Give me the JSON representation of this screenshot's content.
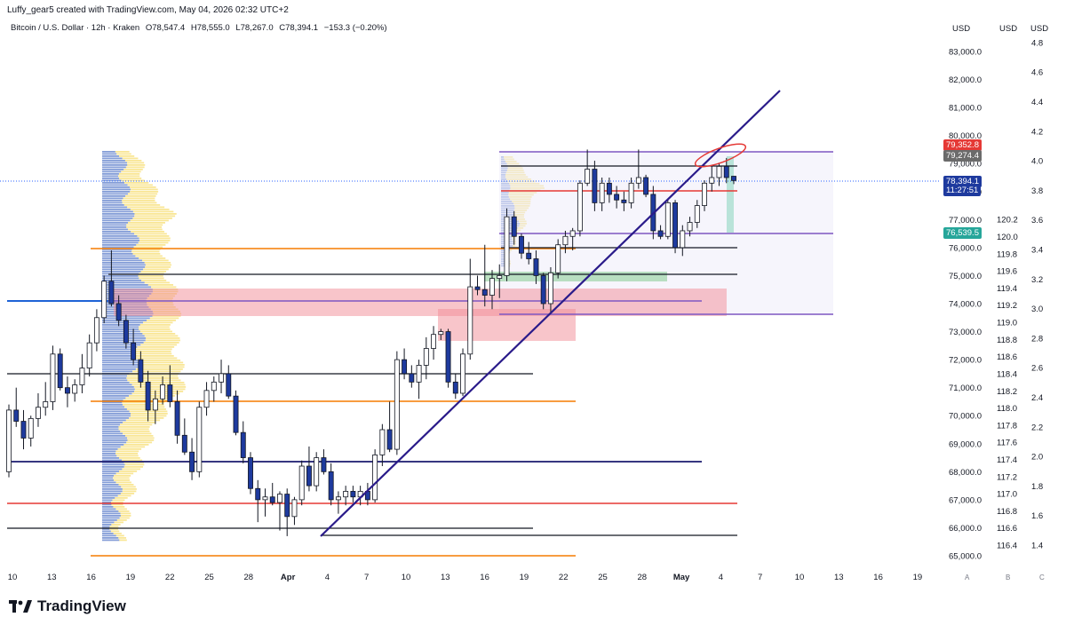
{
  "credit": "Luffy_gear5 created with TradingView.com, May 04, 2026 02:32 UTC+2",
  "legend": {
    "symbol": "Bitcoin / U.S. Dollar · 12h · Kraken",
    "open": "O78,547.4",
    "high": "H78,555.0",
    "low": "L78,267.0",
    "close": "C78,394.1",
    "change": "−153.3 (−0.20%)"
  },
  "axes": {
    "currency_1": "USD",
    "currency_2": "USD",
    "currency_3": "USD",
    "scale_a": "A",
    "scale_b": "B",
    "scale_c": "C"
  },
  "price_tags": {
    "tag1": "79,352.8",
    "tag2": "79,274.4",
    "current_price": "78,394.1",
    "countdown": "11:27:51",
    "tag4": "76,539.5"
  },
  "brand": "TradingView",
  "colors": {
    "up": "#ffffff",
    "down": "#1e3a9e",
    "candle_border": "#131722",
    "trendline": "#2a1b8a",
    "zone_red": "#f28b95",
    "zone_green": "#8fcf99",
    "orange_level": "#f57c00",
    "red_level": "#e53935",
    "navy_level": "#1a1a6e",
    "purple_level": "#7e57c2",
    "blue_level": "#1e63d6",
    "vp_blue": "#5b7cc9",
    "vp_yellow": "#f7e07a"
  },
  "chart_data": {
    "type": "candlestick",
    "symbol": "BTCUSD",
    "exchange": "Kraken",
    "interval": "12h",
    "price_axis": [
      65000,
      66000,
      67000,
      68000,
      69000,
      70000,
      71000,
      72000,
      73000,
      74000,
      75000,
      76000,
      77000,
      78000,
      79000,
      80000,
      81000,
      82000,
      83000
    ],
    "price_axis_labels": [
      "65,000.0",
      "66,000.0",
      "67,000.0",
      "68,000.0",
      "69,000.0",
      "70,000.0",
      "71,000.0",
      "72,000.0",
      "73,000.0",
      "74,000.0",
      "75,000.0",
      "76,000.0",
      "77,000.0",
      "78,000.0",
      "79,000.0",
      "80,000.0",
      "81,000.0",
      "82,000.0",
      "83,000.0"
    ],
    "secondary_axis_labels": [
      "116.4",
      "116.6",
      "116.8",
      "117.0",
      "117.2",
      "117.4",
      "117.6",
      "117.8",
      "118.0",
      "118.2",
      "118.4",
      "118.6",
      "118.8",
      "119.0",
      "119.2",
      "119.4",
      "119.6",
      "119.8",
      "120.0",
      "120.2"
    ],
    "tertiary_axis_labels": [
      "1.4",
      "1.6",
      "1.8",
      "2.0",
      "2.2",
      "2.4",
      "2.6",
      "2.8",
      "3.0",
      "3.2",
      "3.4",
      "3.6",
      "3.8",
      "4.0",
      "4.2",
      "4.4",
      "4.6",
      "4.8"
    ],
    "date_labels": [
      "10",
      "13",
      "16",
      "19",
      "22",
      "25",
      "28",
      "Apr",
      "4",
      "7",
      "10",
      "13",
      "16",
      "19",
      "22",
      "25",
      "28",
      "May",
      "4",
      "7",
      "10",
      "13",
      "16",
      "19"
    ],
    "ylim": [
      64700,
      83800
    ],
    "candles": [
      [
        68000,
        70400,
        67800,
        70200
      ],
      [
        70200,
        71000,
        69600,
        69800
      ],
      [
        69800,
        70200,
        68800,
        69200
      ],
      [
        69200,
        70000,
        68900,
        69900
      ],
      [
        69900,
        70800,
        69600,
        70300
      ],
      [
        70300,
        71200,
        70000,
        70500
      ],
      [
        70500,
        72500,
        70200,
        72200
      ],
      [
        72200,
        72400,
        70900,
        71000
      ],
      [
        71000,
        71400,
        70300,
        70800
      ],
      [
        70800,
        71300,
        70500,
        71100
      ],
      [
        71100,
        72200,
        70800,
        71700
      ],
      [
        71700,
        72900,
        71400,
        72600
      ],
      [
        72600,
        73800,
        72300,
        73500
      ],
      [
        73500,
        75000,
        73300,
        74800
      ],
      [
        74800,
        75900,
        73900,
        74000
      ],
      [
        74000,
        74300,
        73200,
        73400
      ],
      [
        73400,
        73600,
        72400,
        72600
      ],
      [
        72600,
        73100,
        71800,
        72000
      ],
      [
        72000,
        72300,
        71000,
        71200
      ],
      [
        71200,
        71600,
        69800,
        70200
      ],
      [
        70200,
        70900,
        69700,
        70600
      ],
      [
        70600,
        71400,
        70400,
        71100
      ],
      [
        71100,
        71800,
        70300,
        70500
      ],
      [
        70500,
        70900,
        69000,
        69300
      ],
      [
        69300,
        69900,
        68600,
        68700
      ],
      [
        68700,
        69200,
        67700,
        68000
      ],
      [
        68000,
        70500,
        67800,
        70300
      ],
      [
        70300,
        71200,
        70000,
        70900
      ],
      [
        70900,
        71400,
        70500,
        71200
      ],
      [
        71200,
        72000,
        70800,
        71500
      ],
      [
        71500,
        71800,
        70600,
        70700
      ],
      [
        70700,
        70900,
        69300,
        69400
      ],
      [
        69400,
        69800,
        68300,
        68500
      ],
      [
        68500,
        68700,
        67200,
        67400
      ],
      [
        67400,
        67700,
        66200,
        67000
      ],
      [
        67000,
        67400,
        66400,
        67100
      ],
      [
        67100,
        67600,
        66800,
        66900
      ],
      [
        66900,
        67300,
        65900,
        67200
      ],
      [
        67200,
        67400,
        65700,
        66400
      ],
      [
        66400,
        67100,
        66100,
        67000
      ],
      [
        67000,
        68400,
        66800,
        68200
      ],
      [
        68200,
        68900,
        67300,
        67500
      ],
      [
        67500,
        68700,
        67300,
        68500
      ],
      [
        68500,
        68800,
        67900,
        68000
      ],
      [
        68000,
        68300,
        66800,
        67000
      ],
      [
        67000,
        67300,
        66500,
        67100
      ],
      [
        67100,
        67500,
        66800,
        67300
      ],
      [
        67300,
        67500,
        66900,
        67100
      ],
      [
        67100,
        67500,
        66800,
        67300
      ],
      [
        67300,
        67600,
        66800,
        67000
      ],
      [
        67000,
        68800,
        66900,
        68600
      ],
      [
        68600,
        69700,
        68200,
        69500
      ],
      [
        69500,
        70500,
        68700,
        68800
      ],
      [
        68800,
        72300,
        68600,
        72000
      ],
      [
        72000,
        72400,
        71300,
        71500
      ],
      [
        71500,
        71800,
        71000,
        71200
      ],
      [
        71200,
        72000,
        70600,
        71800
      ],
      [
        71800,
        72800,
        71300,
        72400
      ],
      [
        72400,
        73200,
        72000,
        72900
      ],
      [
        72900,
        73100,
        72700,
        73000
      ],
      [
        73000,
        73100,
        71000,
        71200
      ],
      [
        71200,
        71500,
        70600,
        70800
      ],
      [
        70800,
        72400,
        70700,
        72200
      ],
      [
        72200,
        75600,
        72000,
        74600
      ],
      [
        74600,
        75000,
        74300,
        74500
      ],
      [
        74500,
        76100,
        73900,
        74300
      ],
      [
        74300,
        75200,
        73800,
        74900
      ],
      [
        74900,
        75400,
        74200,
        75000
      ],
      [
        75000,
        77400,
        74800,
        77100
      ],
      [
        77100,
        77300,
        76100,
        76400
      ],
      [
        76400,
        76500,
        75600,
        75800
      ],
      [
        75800,
        76200,
        75400,
        75600
      ],
      [
        75600,
        75900,
        74700,
        75000
      ],
      [
        75000,
        75100,
        73800,
        74000
      ],
      [
        74000,
        75300,
        73700,
        75100
      ],
      [
        75100,
        76300,
        74900,
        76100
      ],
      [
        76100,
        76600,
        75800,
        76400
      ],
      [
        76400,
        76700,
        75900,
        76600
      ],
      [
        76600,
        78400,
        76400,
        78300
      ],
      [
        78300,
        79500,
        78200,
        78800
      ],
      [
        78800,
        79100,
        77300,
        77600
      ],
      [
        77600,
        78500,
        77300,
        78300
      ],
      [
        78300,
        78500,
        77600,
        77900
      ],
      [
        77900,
        78200,
        77400,
        77700
      ],
      [
        77700,
        78000,
        77300,
        77600
      ],
      [
        77600,
        78500,
        77400,
        78300
      ],
      [
        78300,
        79500,
        78100,
        78500
      ],
      [
        78500,
        78600,
        77800,
        77900
      ],
      [
        77900,
        78200,
        76300,
        76600
      ],
      [
        76600,
        76800,
        76300,
        76400
      ],
      [
        76400,
        77700,
        76300,
        77600
      ],
      [
        77600,
        77700,
        75800,
        76000
      ],
      [
        76000,
        76800,
        75700,
        76600
      ],
      [
        76600,
        77100,
        76400,
        76900
      ],
      [
        76900,
        77700,
        76700,
        77500
      ],
      [
        77500,
        78400,
        77300,
        78300
      ],
      [
        78300,
        78900,
        78000,
        78500
      ],
      [
        78500,
        79000,
        78200,
        78900
      ],
      [
        78900,
        79200,
        78300,
        78500
      ],
      [
        78547,
        78555,
        78267,
        78394
      ]
    ]
  }
}
